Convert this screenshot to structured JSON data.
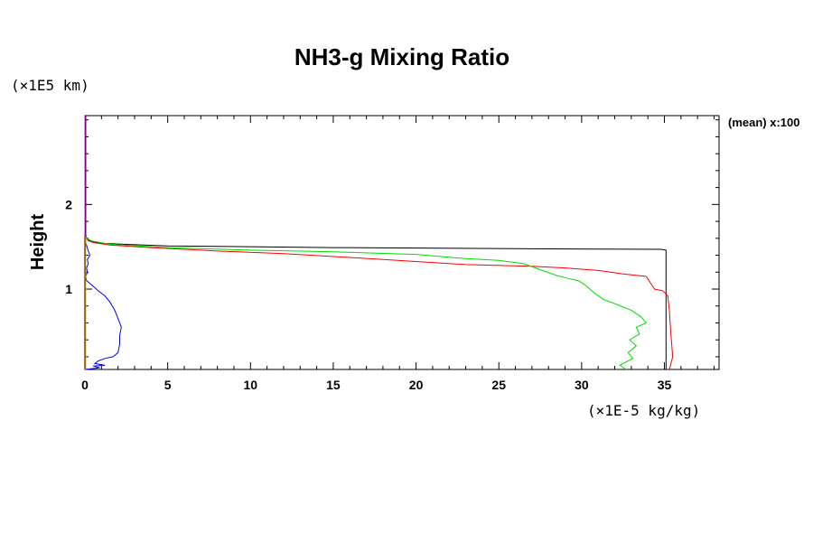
{
  "chart_data": {
    "type": "line",
    "title": "NH3-g Mixing Ratio",
    "ylabel": "Height",
    "y_unit": "(×1E5 km)",
    "x_unit": "(×1E-5 kg/kg)",
    "note": "(mean) x:100",
    "xlim": [
      0,
      38.3
    ],
    "ylim": [
      0.05,
      3.05
    ],
    "x_ticks": [
      0,
      5,
      10,
      15,
      20,
      25,
      30,
      35
    ],
    "y_ticks": [
      1,
      2
    ],
    "x_minor_step": 1,
    "y_minor_step": 0.2,
    "grid": false,
    "series": [
      {
        "color": "#000000",
        "points": [
          [
            35.1,
            0.05
          ],
          [
            35.1,
            1.2
          ],
          [
            35.1,
            1.46
          ],
          [
            34.8,
            1.47
          ],
          [
            28,
            1.475
          ],
          [
            15,
            1.49
          ],
          [
            5,
            1.51
          ],
          [
            1,
            1.54
          ],
          [
            0.3,
            1.57
          ],
          [
            0.1,
            1.6
          ],
          [
            0.05,
            1.63
          ],
          [
            0.05,
            3.05
          ]
        ]
      },
      {
        "color": "#ff0000",
        "points": [
          [
            35.3,
            0.05
          ],
          [
            35.5,
            0.2
          ],
          [
            35.4,
            0.45
          ],
          [
            35.3,
            0.75
          ],
          [
            35.2,
            0.92
          ],
          [
            34.9,
            0.98
          ],
          [
            34.4,
            1.0
          ],
          [
            33.9,
            1.15
          ],
          [
            32.5,
            1.18
          ],
          [
            31,
            1.22
          ],
          [
            29,
            1.25
          ],
          [
            27,
            1.27
          ],
          [
            23,
            1.29
          ],
          [
            18,
            1.35
          ],
          [
            12,
            1.42
          ],
          [
            8,
            1.45
          ],
          [
            4,
            1.49
          ],
          [
            1.5,
            1.52
          ],
          [
            0.5,
            1.55
          ],
          [
            0.2,
            1.57
          ],
          [
            0.1,
            1.6
          ],
          [
            0.05,
            1.65
          ]
        ]
      },
      {
        "color": "#00dd00",
        "points": [
          [
            32.7,
            0.05
          ],
          [
            32.3,
            0.1
          ],
          [
            33.1,
            0.18
          ],
          [
            32.8,
            0.25
          ],
          [
            33.3,
            0.33
          ],
          [
            32.9,
            0.4
          ],
          [
            33.5,
            0.47
          ],
          [
            33.3,
            0.55
          ],
          [
            33.9,
            0.6
          ],
          [
            33.6,
            0.67
          ],
          [
            33.0,
            0.75
          ],
          [
            32.1,
            0.82
          ],
          [
            31.3,
            0.88
          ],
          [
            30.8,
            0.95
          ],
          [
            30.5,
            1.0
          ],
          [
            30.2,
            1.05
          ],
          [
            29.8,
            1.1
          ],
          [
            29.3,
            1.12
          ],
          [
            28.5,
            1.16
          ],
          [
            27.5,
            1.23
          ],
          [
            26.5,
            1.3
          ],
          [
            25,
            1.34
          ],
          [
            23,
            1.36
          ],
          [
            20,
            1.41
          ],
          [
            15,
            1.44
          ],
          [
            10,
            1.46
          ],
          [
            5,
            1.49
          ],
          [
            1.5,
            1.53
          ],
          [
            0.4,
            1.57
          ],
          [
            0.1,
            1.6
          ],
          [
            0.05,
            1.65
          ]
        ]
      },
      {
        "color": "#0000ff",
        "points": [
          [
            0,
            0.05
          ],
          [
            0.9,
            0.07
          ],
          [
            0.5,
            0.09
          ],
          [
            1.2,
            0.1
          ],
          [
            0.6,
            0.12
          ],
          [
            0.8,
            0.15
          ],
          [
            1.2,
            0.18
          ],
          [
            1.7,
            0.2
          ],
          [
            2.0,
            0.25
          ],
          [
            2.1,
            0.35
          ],
          [
            2.1,
            0.45
          ],
          [
            2.2,
            0.55
          ],
          [
            2.0,
            0.65
          ],
          [
            1.8,
            0.75
          ],
          [
            1.5,
            0.85
          ],
          [
            1.2,
            0.92
          ],
          [
            0.8,
            0.98
          ],
          [
            0.4,
            1.05
          ],
          [
            0.1,
            1.1
          ],
          [
            0.05,
            1.15
          ],
          [
            0.15,
            1.2
          ],
          [
            0.1,
            1.25
          ],
          [
            0.2,
            1.3
          ],
          [
            0.15,
            1.35
          ],
          [
            0.3,
            1.4
          ],
          [
            0.2,
            1.45
          ],
          [
            0.05,
            1.55
          ],
          [
            0.05,
            1.65
          ]
        ]
      },
      {
        "color": "#ffa500",
        "points": [
          [
            0.05,
            0.05
          ],
          [
            0.05,
            1.3
          ],
          [
            0.05,
            1.62
          ]
        ]
      },
      {
        "color": "#ff00ff",
        "points": [
          [
            0,
            1.62
          ],
          [
            0,
            3.05
          ]
        ]
      }
    ]
  }
}
